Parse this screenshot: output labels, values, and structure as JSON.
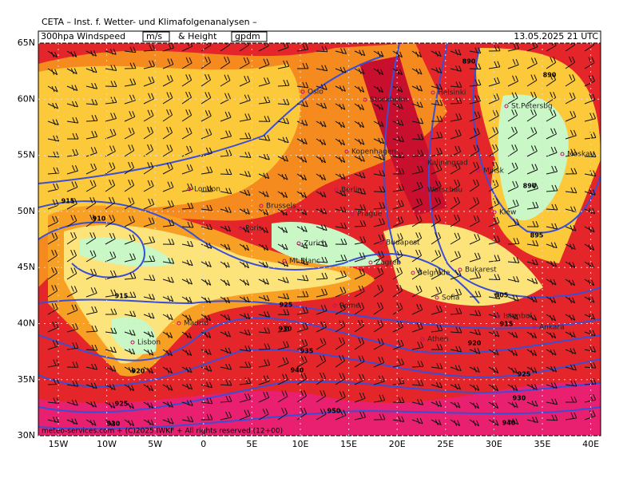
{
  "header": "CETA – Inst. f. Wetter- und Klimafolgenanalysen –",
  "title": {
    "field": "300hpa Windspeed",
    "unit": "m/s",
    "and": "& Height",
    "height_unit": "gpdm"
  },
  "valid": "13.05.2025 21 UTC",
  "lat_labels": [
    "65N",
    "60N",
    "55N",
    "50N",
    "45N",
    "40N",
    "35N",
    "30N"
  ],
  "lon_labels": [
    "15W",
    "10W",
    "5W",
    "0",
    "5E",
    "10E",
    "15E",
    "20E",
    "25E",
    "30E",
    "35E",
    "40E"
  ],
  "cities": [
    "Oslo",
    "Stockholm",
    "Helsinki",
    "St.Petersbg",
    "Moskau",
    "Kopenhagen",
    "Kaliningrad",
    "Minsk",
    "Warschau",
    "Berlin",
    "London",
    "Brussels",
    "Kiew",
    "Prague",
    "Paris",
    "Budapest",
    "Zurich",
    "Mt.Blanc",
    "Zagreb",
    "Belgrade",
    "Bukarest",
    "Sofia",
    "Rome",
    "Istanbul",
    "Ankara",
    "Madrid",
    "Athen",
    "Lisbon"
  ],
  "contours": [
    "890",
    "890",
    "890",
    "895",
    "915",
    "910",
    "915",
    "925",
    "930",
    "935",
    "940",
    "920",
    "925",
    "930",
    "905",
    "915",
    "920",
    "925",
    "930",
    "940",
    "950"
  ],
  "footer": "meteo-services.com + (C)2025 IWKF + All rights reserved (12+00)"
}
